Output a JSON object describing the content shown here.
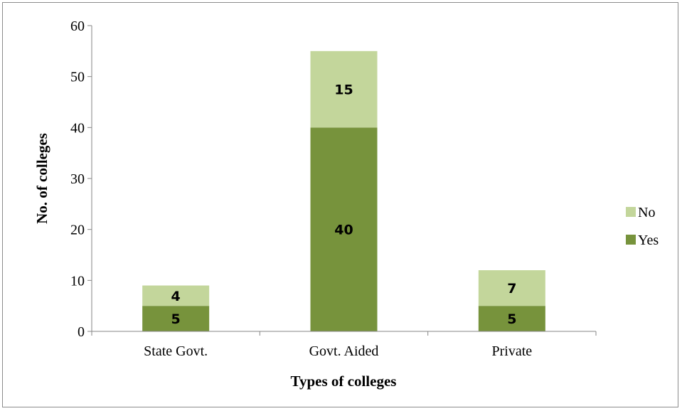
{
  "chart_data": {
    "type": "bar",
    "stacked": true,
    "categories": [
      "State Govt.",
      "Govt. Aided",
      "Private"
    ],
    "series": [
      {
        "name": "Yes",
        "values": [
          5,
          40,
          5
        ],
        "color": "#77933c"
      },
      {
        "name": "No",
        "values": [
          4,
          15,
          7
        ],
        "color": "#c3d69b"
      }
    ],
    "xlabel": "Types of colleges",
    "ylabel": "No. of colleges",
    "ylim": [
      0,
      60
    ],
    "yticks": [
      0,
      10,
      20,
      30,
      40,
      50,
      60
    ],
    "grid": false,
    "legend_position": "right",
    "legend_order": [
      "No",
      "Yes"
    ]
  }
}
